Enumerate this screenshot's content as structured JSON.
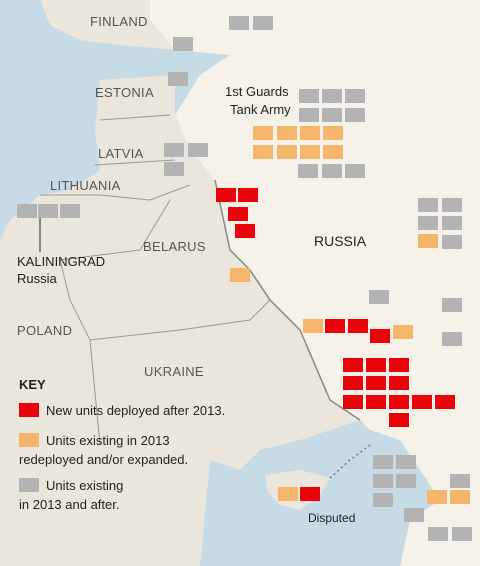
{
  "map": {
    "labels": {
      "finland": "FINLAND",
      "estonia": "ESTONIA",
      "latvia": "LATVIA",
      "lithuania": "LITHUANIA",
      "belarus": "BELARUS",
      "poland": "POLAND",
      "ukraine": "UKRAINE",
      "russia": "RUSSIA",
      "kaliningrad": "KALININGRAD",
      "kaliningrad_country": "Russia",
      "disputed": "Disputed"
    },
    "annotation": [
      "1st Guards",
      "Tank Army"
    ],
    "key": {
      "title": "KEY",
      "items": [
        {
          "lines": [
            "New units deployed after 2013."
          ]
        },
        {
          "lines": [
            "Units existing in 2013",
            "redeployed and/or expanded."
          ]
        },
        {
          "lines": [
            "Units existing",
            "in 2013 and after."
          ]
        }
      ]
    }
  }
}
